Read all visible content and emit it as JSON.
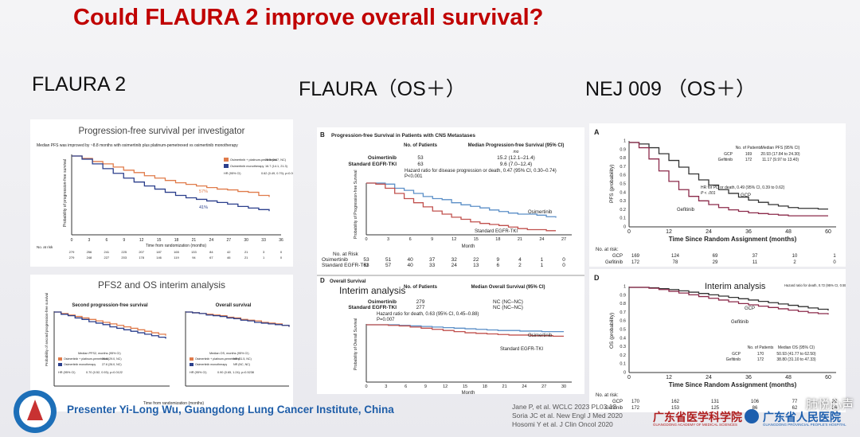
{
  "title": "Could FLAURA 2 improve overall survival?",
  "columns": [
    "FLAURA 2",
    "FLAURA（OS＋）",
    "NEJ 009 （OS＋）"
  ],
  "flaura2": {
    "pfs_title": "Progression-free survival per investigator",
    "pfs_note": "Median PFS was improved by ~8.8 months with osimertinib plus platinum-pemetrexed vs osimertinib monotherapy",
    "pfs_y_label": "Probability of progression-free survival",
    "pfs_x_label": "Time from randomization (months)",
    "pfs_x_ticks": [
      "0",
      "3",
      "6",
      "9",
      "12",
      "15",
      "18",
      "21",
      "24",
      "27",
      "30",
      "33",
      "36"
    ],
    "legend": [
      "Osimertinib + platinum-pemetrexed",
      "Osimertinib monotherapy"
    ],
    "pfs_medians": [
      "25.5 (24.7, NC)",
      "16.7 (14.1, 21.3)"
    ],
    "pfs_hr": "0.62 (0.49, 0.79); p<0.0001",
    "pfs_markers": [
      "57%",
      "41%"
    ],
    "no_at_risk": "No. at risk",
    "pfs_risk": [
      [
        "279",
        "256",
        "241",
        "225",
        "207",
        "187",
        "165",
        "133",
        "84",
        "42",
        "21",
        "3",
        "0"
      ],
      [
        "279",
        "248",
        "227",
        "203",
        "178",
        "146",
        "119",
        "94",
        "67",
        "46",
        "21",
        "1",
        "0"
      ]
    ],
    "interim_title": "PFS2 and OS interim analysis",
    "pfs2_title": "Second progression-free survival",
    "os_title": "Overall survival",
    "pfs2_y_label": "Probability of second progression-free survival",
    "pfs2_median_label": "Median PFS2, months (95% CI)",
    "os_median_label": "Median OS, months (95% CI)",
    "pfs2_medians": [
      "30.6 (29.0, NC)",
      "27.6 (26.0, NC)"
    ],
    "os_medians": [
      "NR (31.5, NC)",
      "NR (NC, NC)"
    ],
    "hr_label": "HR (95% CI)",
    "pfs2_hr": "0.70 (0.52, 0.93); p=0.0122",
    "os_hr": "0.90 (0.65, 1.24); p=0.5238",
    "interim_x_label": "Time from randomization (months)"
  },
  "flaura": {
    "b_letter": "B",
    "b_title": "Progression-free Survival in Patients with CNS Metastases",
    "b_headers": [
      "No. of Patients",
      "Median Progression-free Survival (95% CI)"
    ],
    "b_unit": "mo",
    "b_rows": [
      [
        "Osimertinib",
        "53",
        "15.2 (12.1–21.4)"
      ],
      [
        "Standard EGFR-TKI",
        "63",
        "9.6 (7.0–12.4)"
      ]
    ],
    "b_hr": "Hazard ratio for disease progression or death, 0.47 (95% CI, 0.30–0.74)",
    "b_p": "P<0.001",
    "b_y_label": "Probability of Progression-free Survival",
    "curve_labels": [
      "Osimertinib",
      "Standard EGFR-TKI"
    ],
    "month": "Month",
    "x_ticks": [
      "0",
      "3",
      "6",
      "9",
      "12",
      "15",
      "18",
      "21",
      "24",
      "27"
    ],
    "y_ticks": [
      "1.0",
      "0.8",
      "0.6",
      "0.4",
      "0.2",
      "0.0"
    ],
    "risk_title": "No. at Risk",
    "b_risk": [
      [
        "Osimertinib",
        "53",
        "51",
        "40",
        "37",
        "32",
        "22",
        "9",
        "4",
        "1",
        "0"
      ],
      [
        "Standard EGFR-TKI",
        "63",
        "57",
        "40",
        "33",
        "24",
        "13",
        "6",
        "2",
        "1",
        "0"
      ]
    ],
    "d_letter": "D",
    "d_title": "Overall Survival",
    "d_interim": "Interim analysis",
    "d_headers": [
      "No. of Patients",
      "Median Overall Survival (95% CI)"
    ],
    "d_rows": [
      [
        "Osimertinib",
        "279",
        "NC (NC–NC)"
      ],
      [
        "Standard EGFR-TKI",
        "277",
        "NC (NC–NC)"
      ]
    ],
    "d_hr": "Hazard ratio for death, 0.63 (95% CI, 0.45–0.88)",
    "d_p": "P=0.007",
    "d_y_label": "Probability of Overall Survival",
    "d_x_ticks": [
      "0",
      "3",
      "6",
      "9",
      "12",
      "15",
      "18",
      "21",
      "24",
      "27",
      "30"
    ]
  },
  "nej009": {
    "a_letter": "A",
    "a_y_label": "PFS (probability)",
    "a_headers": [
      "No. of Patients",
      "Median PFS (95% CI)"
    ],
    "a_rows": [
      [
        "GCP",
        "169",
        "20.93 (17.84 to 24.30)"
      ],
      [
        "Gefitinib",
        "172",
        "11.17 (9.97 to 13.40)"
      ]
    ],
    "a_hr": "HR for PD or death, 0.49 (95% CI, 0.39 to 0.62)",
    "a_p": "P < .001",
    "curve_labels": [
      "GCP",
      "Gefitinib"
    ],
    "x_label": "Time Since Random Assignment (months)",
    "x_ticks": [
      "0",
      "12",
      "24",
      "36",
      "48",
      "60"
    ],
    "y_ticks": [
      "1",
      "0.9",
      "0.8",
      "0.7",
      "0.6",
      "0.5",
      "0.4",
      "0.3",
      "0.2",
      "0.1",
      "0"
    ],
    "risk_title": "No. at risk:",
    "a_risk": [
      [
        "GCP",
        "169",
        "124",
        "69",
        "37",
        "10",
        "1"
      ],
      [
        "Gefitinib",
        "172",
        "78",
        "29",
        "11",
        "2",
        "0"
      ]
    ],
    "d_letter": "D",
    "d_interim": "Interim analysis",
    "d_y_label": "OS (probability)",
    "d_hr": "Hazard ratio for death, 0.72 (95% CI, 0.55 to 0.95) P = .021",
    "d_headers": [
      "No. of Patients",
      "Median OS (95% CI)"
    ],
    "d_rows": [
      [
        "GCP",
        "170",
        "50.93 (41.77 to 62.50)"
      ],
      [
        "Gefitinib",
        "172",
        "38.80 (31.10 to 47.33)"
      ]
    ],
    "d_risk": [
      [
        "GCP",
        "170",
        "162",
        "131",
        "106",
        "77",
        "29"
      ],
      [
        "Gefitinib",
        "172",
        "153",
        "125",
        "86",
        "62",
        "26"
      ]
    ]
  },
  "footer": {
    "presenter": "Presenter  Yi-Long Wu, Guangdong Lung Cancer Institute, China",
    "references": [
      "Jane P, et al. WCLC 2023 PL03.13",
      "Soria  JC et al. New Engl J Med 2020",
      "Hosomi Y et al. J Clin Oncol 2020"
    ],
    "logo_left": "广东省医学科学院",
    "logo_left_en": "GUANGDONG ACADEMY OF MEDICAL SCIENCES",
    "logo_right": "广东省人民医院",
    "logo_right_en": "GUANGDONG PROVINCIAL PEOPLE'S HOSPITAL",
    "watermark": "肺悦心声"
  }
}
